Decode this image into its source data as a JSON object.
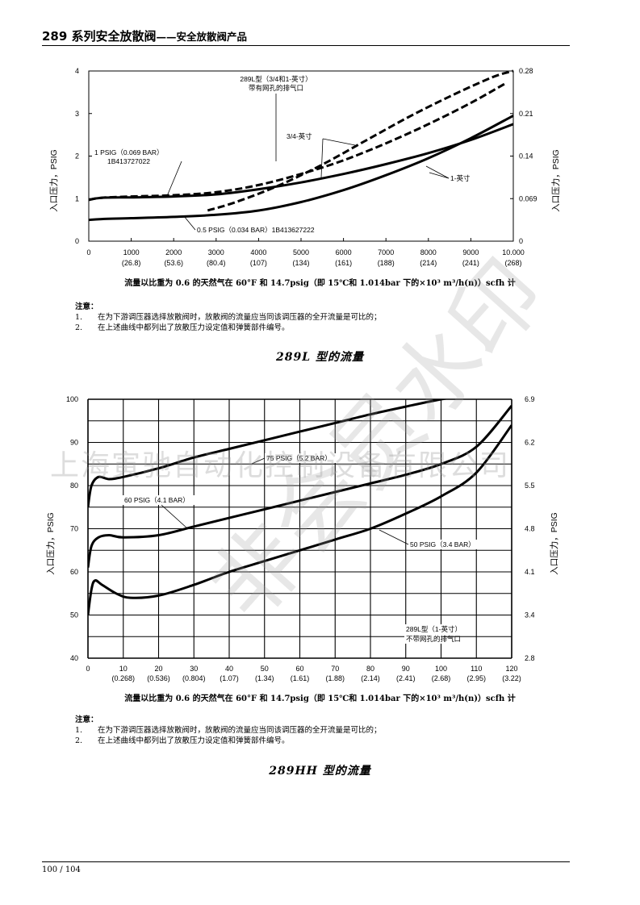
{
  "header": {
    "title": "289 系列安全放散阀",
    "subtitle": "——安全放散阀产品"
  },
  "watermark": {
    "company": "上海寅驰自动化控制设备有限公司",
    "stamp": "非会员水印"
  },
  "chart_data": [
    {
      "type": "line",
      "title": "289L 型的流量",
      "xlabel": "流量以比重为 0.6 的天然气在 60°F 和 14.7psig（即 15℃和 1.014bar 下的×10³ m³/h(n)）scfh 计",
      "ylabel_left": "入口压力，PSIG",
      "ylabel_right": "入口压力，PSIG",
      "x_ticks": [
        "0",
        "1000",
        "2000",
        "3000",
        "4000",
        "5000",
        "6000",
        "7000",
        "8000",
        "9000",
        "10.000"
      ],
      "x_ticks_metric": [
        "",
        "(26.8)",
        "(53.6)",
        "(80.4)",
        "(107)",
        "(134)",
        "(161)",
        "(188)",
        "(214)",
        "(241)",
        "(268)"
      ],
      "y_ticks_left": [
        "0",
        "1",
        "2",
        "3",
        "4"
      ],
      "y_ticks_right": [
        "0",
        "0.069",
        "0.14",
        "0.21",
        "0.28"
      ],
      "xlim": [
        0,
        10000
      ],
      "ylim": [
        0,
        4
      ],
      "grid": false,
      "series": [
        {
          "name": "1 PSIG (0.069 BAR) 1B413727022",
          "style": "solid",
          "x": [
            0,
            300,
            1000,
            2000,
            3000,
            4000,
            5000,
            6000,
            7000,
            8000,
            9000,
            10000
          ],
          "values": [
            0.97,
            1.02,
            1.03,
            1.05,
            1.1,
            1.22,
            1.38,
            1.58,
            1.81,
            2.07,
            2.38,
            2.75
          ]
        },
        {
          "name": "0.5 PSIG (0.034 BAR) 1B413627222",
          "style": "solid",
          "x": [
            0,
            300,
            1000,
            2000,
            3000,
            4000,
            5000,
            6000,
            7000,
            8000,
            9000,
            10000
          ],
          "values": [
            0.5,
            0.52,
            0.54,
            0.57,
            0.62,
            0.72,
            0.92,
            1.2,
            1.55,
            1.95,
            2.42,
            2.95
          ]
        },
        {
          "name": "3/4-英寸",
          "style": "dashed",
          "x": [
            0,
            300,
            1000,
            2000,
            3000,
            4000,
            5000,
            6000,
            7000,
            8000,
            9000,
            9800
          ],
          "values": [
            0.97,
            1.02,
            1.05,
            1.08,
            1.15,
            1.32,
            1.58,
            1.9,
            2.3,
            2.75,
            3.25,
            3.7
          ]
        },
        {
          "name": "289L型 (3/4和1-英寸) 带有网孔的排气口",
          "style": "dashed",
          "x": [
            2800,
            3500,
            4500,
            5500,
            6500,
            7500,
            8500,
            9500,
            10000
          ],
          "values": [
            0.72,
            0.93,
            1.32,
            1.8,
            2.35,
            2.9,
            3.4,
            3.85,
            4.0
          ]
        }
      ],
      "annotations": [
        "289L型（3/4和1-英寸）",
        "带有网孔的排气口",
        "3/4-英寸",
        "1 PSIG（0.069 BAR）",
        "1B413727022",
        "1-英寸",
        "0.5 PSIG（0.034 BAR）1B413627222"
      ]
    },
    {
      "type": "line",
      "title": "289HH 型的流量",
      "xlabel": "流量以比重为 0.6 的天然气在 60°F 和 14.7psig（即 15℃和 1.014bar 下的×10³ m³/h(n)）scfh 计",
      "ylabel_left": "入口压力，PSIG",
      "ylabel_right": "入口压力，PSIG",
      "x_ticks": [
        "0",
        "10",
        "20",
        "30",
        "40",
        "50",
        "60",
        "70",
        "80",
        "90",
        "100",
        "110",
        "120"
      ],
      "x_ticks_metric": [
        "",
        "(0.268)",
        "(0.536)",
        "(0.804)",
        "(1.07)",
        "(1.34)",
        "(1.61)",
        "(1.88)",
        "(2.14)",
        "(2.41)",
        "(2.68)",
        "(2.95)",
        "(3.22)"
      ],
      "y_ticks_left": [
        "40",
        "50",
        "60",
        "70",
        "80",
        "90",
        "100"
      ],
      "y_ticks_right": [
        "2.8",
        "3.4",
        "4.1",
        "4.8",
        "5.5",
        "6.2",
        "6.9"
      ],
      "xlim": [
        0,
        120
      ],
      "ylim": [
        40,
        100
      ],
      "grid": true,
      "series": [
        {
          "name": "75 PSIG (5.2 BAR)",
          "style": "solid",
          "x": [
            0,
            1,
            3,
            6,
            10,
            20,
            30,
            40,
            50,
            60,
            70,
            80,
            90,
            100,
            105
          ],
          "values": [
            75,
            80,
            82,
            81.5,
            82,
            84,
            86.5,
            88.5,
            90.5,
            92.5,
            94.5,
            96.5,
            98.3,
            100,
            100.5
          ]
        },
        {
          "name": "60 PSIG (4.1 BAR)",
          "style": "solid",
          "x": [
            0,
            1,
            3,
            6,
            10,
            20,
            30,
            40,
            50,
            60,
            70,
            80,
            90,
            100,
            110,
            120
          ],
          "values": [
            61,
            66,
            68,
            68.5,
            68,
            68.5,
            70.5,
            72.5,
            74.5,
            76.5,
            78.5,
            80.5,
            82.5,
            85,
            89,
            98.5
          ]
        },
        {
          "name": "50 PSIG (3.4 BAR)",
          "style": "solid",
          "x": [
            0,
            1,
            2,
            4,
            8,
            12,
            20,
            30,
            40,
            50,
            60,
            70,
            80,
            90,
            100,
            110,
            120
          ],
          "values": [
            50,
            56,
            58,
            57,
            55,
            54,
            54.5,
            57,
            60,
            62.5,
            65,
            67.5,
            70,
            73.5,
            77.5,
            83,
            94
          ]
        }
      ],
      "annotations": [
        "75 PSIG（5.2 BAR）",
        "60 PSIG（4.1 BAR）",
        "50 PSIG（3.4 BAR）",
        "289L型（1-英寸）",
        "不带网孔的排气口"
      ]
    }
  ],
  "caption1": "流量以比重为 0.6 的天然气在 60°F 和 14.7psig（即 15℃和 1.014bar 下的×10³ m³/h(n)）scfh 计",
  "caption2": "流量以比重为 0.6 的天然气在 60°F 和 14.7psig（即 15℃和 1.014bar 下的×10³ m³/h(n)）scfh 计",
  "notes1": {
    "title": "注意：",
    "items": [
      {
        "num": "1.",
        "text": "在为下游调压器选择放散阀时，放散阀的流量应当同该调压器的全开流量是可比的；"
      },
      {
        "num": "2.",
        "text": "在上述曲线中都列出了放散压力设定值和弹簧部件编号。"
      }
    ]
  },
  "notes2": {
    "title": "注意：",
    "items": [
      {
        "num": "1.",
        "text": "在为下游调压器选择放散阀时，放散阀的流量应当同该调压器的全开流量是可比的；"
      },
      {
        "num": "2.",
        "text": "在上述曲线中都列出了放散压力设定值和弹簧部件编号。"
      }
    ]
  },
  "section1_title": "289L 型的流量",
  "section2_title": "289HH 型的流量",
  "footer": {
    "page": "100 / 104"
  }
}
